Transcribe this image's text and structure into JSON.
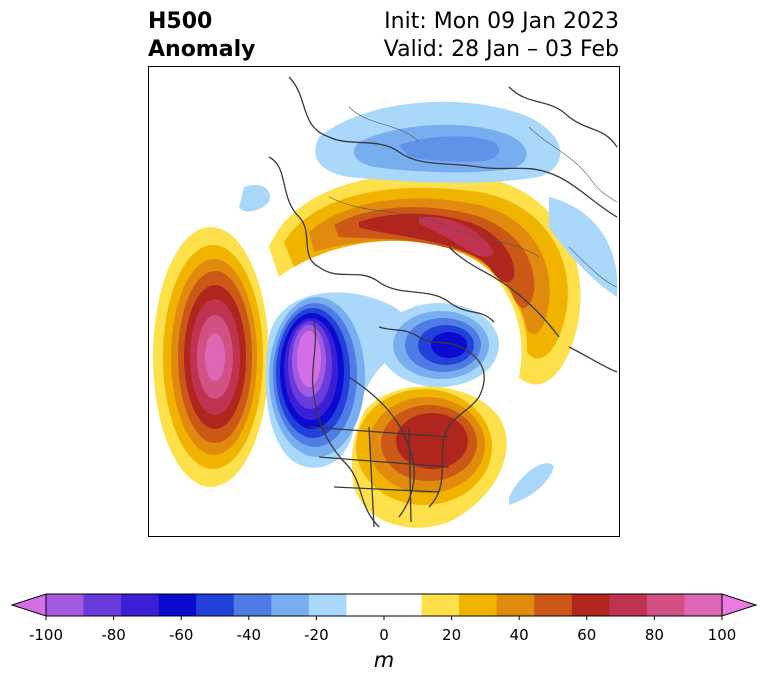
{
  "header": {
    "title_line1": "H500",
    "title_line2": "Anomaly",
    "init_text": "Init: Mon 09 Jan 2023",
    "valid_text": "Valid: 28 Jan – 03 Feb"
  },
  "colorbar": {
    "unit": "m",
    "ticks": [
      "-100",
      "-80",
      "-60",
      "-40",
      "-20",
      "0",
      "20",
      "40",
      "60",
      "80",
      "100"
    ],
    "colors": [
      "#d36ee6",
      "#a25be0",
      "#6a3bdb",
      "#3a1fd6",
      "#0b0bd0",
      "#2241d9",
      "#4f7be5",
      "#78aef0",
      "#a9d8fb",
      "#ffffff",
      "#ffffff",
      "#fde04a",
      "#f0b400",
      "#e08a0e",
      "#cb5817",
      "#b0251e",
      "#c03350",
      "#d35084",
      "#de67b5",
      "#ea7be0"
    ]
  },
  "map": {
    "anomaly_centers": [
      {
        "label": "positive-pacific",
        "value": 90
      },
      {
        "label": "negative-west-coast",
        "value": -100
      },
      {
        "label": "positive-east-canada",
        "value": 60
      },
      {
        "label": "negative-hudson-bay",
        "value": -60
      },
      {
        "label": "positive-arctic-eurasia",
        "value": 70
      },
      {
        "label": "negative-north-atlantic",
        "value": -30
      }
    ]
  }
}
